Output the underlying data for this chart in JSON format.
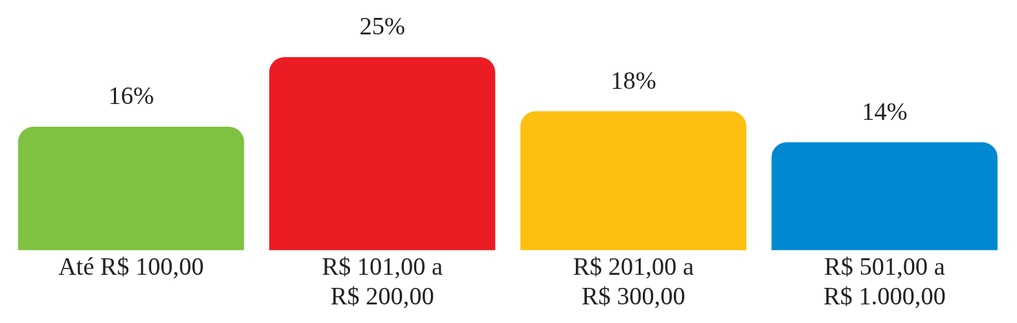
{
  "chart_data": {
    "type": "bar",
    "categories": [
      "Até R$ 100,00",
      "R$ 101,00 a R$ 200,00",
      "R$ 201,00 a R$ 300,00",
      "R$ 501,00 a R$ 1.000,00"
    ],
    "values": [
      16,
      25,
      18,
      14
    ],
    "colors": [
      "#7fc241",
      "#ec1c24",
      "#fdc010",
      "#0089d0"
    ],
    "value_labels": [
      "16%",
      "25%",
      "18%",
      "14%"
    ],
    "grid": false,
    "legend": false
  }
}
